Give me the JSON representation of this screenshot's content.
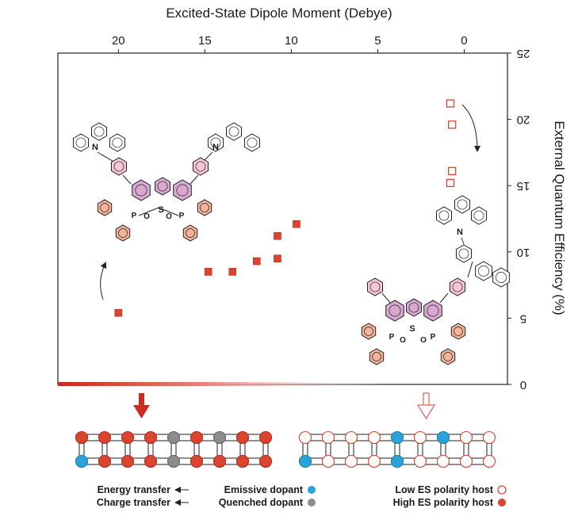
{
  "chart_data": {
    "type": "scatter",
    "orientation_note": "",
    "xlabel": "Excited-State Dipole Moment (Debye)",
    "ylabel": "External Quantum Efficiency (%)",
    "x_ticks": [
      "0",
      "5",
      "10",
      "15",
      "20"
    ],
    "y_ticks": [
      "0",
      "5",
      "10",
      "15",
      "20",
      "25"
    ],
    "xlim": [
      -2.5,
      23.5
    ],
    "ylim": [
      0,
      25
    ],
    "series": [
      {
        "name": "Low ES polarity host",
        "marker": "open-square",
        "color": "#d9452f",
        "points": [
          {
            "x": 0.8,
            "y": 21.2
          },
          {
            "x": 0.7,
            "y": 19.6
          },
          {
            "x": 0.7,
            "y": 16.1
          },
          {
            "x": 0.8,
            "y": 15.2
          }
        ]
      },
      {
        "name": "High ES polarity host",
        "marker": "filled-square",
        "color": "#d9452f",
        "points": [
          {
            "x": 9.7,
            "y": 12.1
          },
          {
            "x": 10.8,
            "y": 11.2
          },
          {
            "x": 10.8,
            "y": 9.5
          },
          {
            "x": 12.0,
            "y": 9.3
          },
          {
            "x": 13.4,
            "y": 8.5
          },
          {
            "x": 14.8,
            "y": 8.5
          },
          {
            "x": 20.0,
            "y": 5.4
          }
        ]
      }
    ],
    "legend": [
      {
        "label": "Low ES polarity host",
        "symbol": "open-circle",
        "color": "#d9452f"
      },
      {
        "label": "High ES polarity host",
        "symbol": "filled-circle",
        "color": "#d9452f"
      },
      {
        "label": "Emissive dopant",
        "symbol": "filled-circle",
        "color": "#2aa3d8"
      },
      {
        "label": "Quenched dopant",
        "symbol": "filled-circle",
        "color": "#8c8c8c"
      },
      {
        "label": "Energy transfer",
        "symbol": "arrow"
      },
      {
        "label": "Charge transfer",
        "symbol": "arrow"
      }
    ],
    "molecule_labels": [
      "N",
      "S",
      "P",
      "O"
    ],
    "colors": {
      "accent": "#d9452f",
      "emissive": "#2aa3d8",
      "quenched": "#8c8c8c",
      "ring_fill": "#d8a8d0",
      "phenyl_fill": "#f4b49c",
      "pink_ring": "#f6c6d6"
    }
  }
}
